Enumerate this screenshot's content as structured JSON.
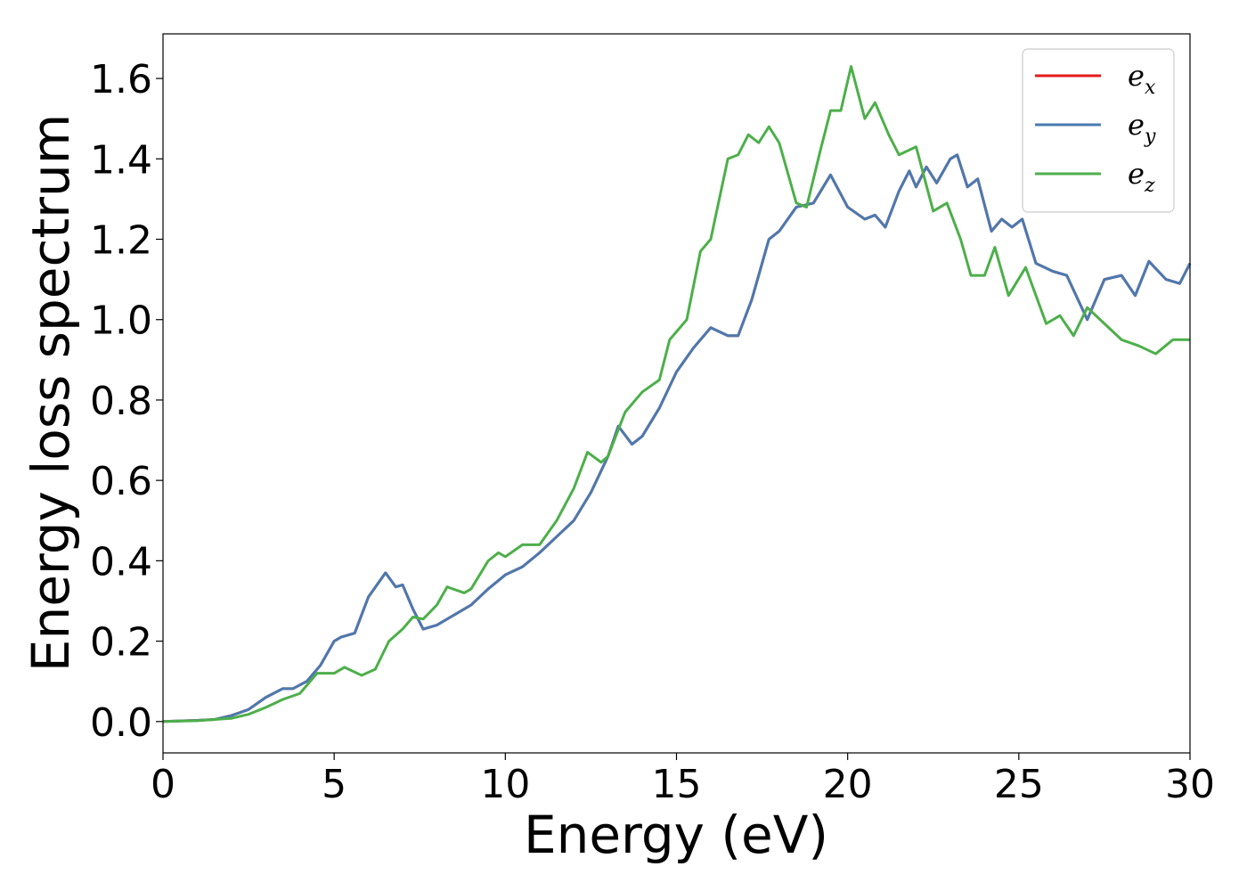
{
  "chart_data": {
    "type": "line",
    "xlabel": "Energy (eV)",
    "ylabel": "Energy loss spectrum",
    "xlim": [
      0,
      30
    ],
    "ylim": [
      -0.078,
      1.711
    ],
    "xticks": [
      0,
      5,
      10,
      15,
      20,
      25,
      30
    ],
    "yticks": [
      {
        "value": 0,
        "label": "0.0"
      },
      0.2,
      0.4,
      0.6,
      0.8,
      {
        "value": 1,
        "label": "1.0"
      },
      1.2,
      1.4,
      1.6
    ],
    "grid": false,
    "legend": "upper right",
    "series": [
      {
        "name": "e_x",
        "color": "#e41a1c",
        "x": [
          0,
          1,
          1.5,
          2,
          2.5,
          3,
          3.5,
          3.8,
          4.2,
          4.6,
          5,
          5.2,
          5.6,
          6,
          6.5,
          6.8,
          7,
          7.3,
          7.6,
          8,
          8.5,
          9,
          9.5,
          10,
          10.5,
          11,
          11.5,
          12,
          12.5,
          13,
          13.3,
          13.7,
          14,
          14.5,
          15,
          15.5,
          16,
          16.5,
          16.8,
          17.2,
          17.7,
          18,
          18.5,
          19,
          19.5,
          20,
          20.5,
          20.8,
          21.1,
          21.5,
          21.8,
          22,
          22.3,
          22.6,
          23,
          23.2,
          23.5,
          23.8,
          24.2,
          24.5,
          24.8,
          25.1,
          25.5,
          26,
          26.4,
          27,
          27.5,
          28,
          28.4,
          28.8,
          29.3,
          29.7,
          30
        ],
        "values": [
          0,
          0.003,
          0.005,
          0.015,
          0.03,
          0.06,
          0.082,
          0.082,
          0.1,
          0.14,
          0.2,
          0.21,
          0.22,
          0.31,
          0.37,
          0.335,
          0.34,
          0.28,
          0.23,
          0.24,
          0.265,
          0.29,
          0.33,
          0.365,
          0.385,
          0.42,
          0.46,
          0.5,
          0.57,
          0.66,
          0.735,
          0.69,
          0.71,
          0.78,
          0.87,
          0.93,
          0.98,
          0.96,
          0.96,
          1.05,
          1.2,
          1.22,
          1.28,
          1.29,
          1.36,
          1.28,
          1.25,
          1.26,
          1.23,
          1.32,
          1.37,
          1.33,
          1.38,
          1.34,
          1.4,
          1.41,
          1.33,
          1.35,
          1.22,
          1.25,
          1.23,
          1.25,
          1.14,
          1.12,
          1.11,
          1.0,
          1.1,
          1.11,
          1.06,
          1.145,
          1.1,
          1.09,
          1.14
        ]
      },
      {
        "name": "e_y",
        "color": "#4a7ab0",
        "x": [
          0,
          1,
          1.5,
          2,
          2.5,
          3,
          3.5,
          3.8,
          4.2,
          4.6,
          5,
          5.2,
          5.6,
          6,
          6.5,
          6.8,
          7,
          7.3,
          7.6,
          8,
          8.5,
          9,
          9.5,
          10,
          10.5,
          11,
          11.5,
          12,
          12.5,
          13,
          13.3,
          13.7,
          14,
          14.5,
          15,
          15.5,
          16,
          16.5,
          16.8,
          17.2,
          17.7,
          18,
          18.5,
          19,
          19.5,
          20,
          20.5,
          20.8,
          21.1,
          21.5,
          21.8,
          22,
          22.3,
          22.6,
          23,
          23.2,
          23.5,
          23.8,
          24.2,
          24.5,
          24.8,
          25.1,
          25.5,
          26,
          26.4,
          27,
          27.5,
          28,
          28.4,
          28.8,
          29.3,
          29.7,
          30
        ],
        "values": [
          0,
          0.003,
          0.005,
          0.015,
          0.03,
          0.06,
          0.082,
          0.082,
          0.1,
          0.14,
          0.2,
          0.21,
          0.22,
          0.31,
          0.37,
          0.335,
          0.34,
          0.28,
          0.23,
          0.24,
          0.265,
          0.29,
          0.33,
          0.365,
          0.385,
          0.42,
          0.46,
          0.5,
          0.57,
          0.66,
          0.735,
          0.69,
          0.71,
          0.78,
          0.87,
          0.93,
          0.98,
          0.96,
          0.96,
          1.05,
          1.2,
          1.22,
          1.28,
          1.29,
          1.36,
          1.28,
          1.25,
          1.26,
          1.23,
          1.32,
          1.37,
          1.33,
          1.38,
          1.34,
          1.4,
          1.41,
          1.33,
          1.35,
          1.22,
          1.25,
          1.23,
          1.25,
          1.14,
          1.12,
          1.11,
          1.0,
          1.1,
          1.11,
          1.06,
          1.145,
          1.1,
          1.09,
          1.14
        ]
      },
      {
        "name": "e_z",
        "color": "#4daf4a",
        "x": [
          0,
          1,
          2,
          2.5,
          3,
          3.5,
          4,
          4.5,
          5,
          5.3,
          5.8,
          6.2,
          6.6,
          7,
          7.3,
          7.6,
          8,
          8.3,
          8.8,
          9,
          9.5,
          9.8,
          10,
          10.5,
          11,
          11.5,
          12,
          12.4,
          12.8,
          13,
          13.5,
          14,
          14.5,
          14.8,
          15.3,
          15.7,
          16,
          16.5,
          16.8,
          17.1,
          17.4,
          17.7,
          18,
          18.5,
          18.8,
          19.2,
          19.5,
          19.8,
          20.1,
          20.5,
          20.8,
          21.2,
          21.5,
          22,
          22.5,
          22.9,
          23.3,
          23.6,
          24,
          24.3,
          24.7,
          25.2,
          25.8,
          26.2,
          26.6,
          27,
          27.5,
          28,
          28.5,
          29,
          29.5,
          30
        ],
        "values": [
          0,
          0.002,
          0.008,
          0.018,
          0.035,
          0.055,
          0.07,
          0.12,
          0.12,
          0.135,
          0.115,
          0.13,
          0.2,
          0.23,
          0.26,
          0.255,
          0.29,
          0.335,
          0.32,
          0.33,
          0.4,
          0.42,
          0.41,
          0.44,
          0.44,
          0.5,
          0.58,
          0.67,
          0.645,
          0.66,
          0.77,
          0.82,
          0.85,
          0.95,
          1.0,
          1.17,
          1.2,
          1.4,
          1.41,
          1.46,
          1.44,
          1.48,
          1.44,
          1.29,
          1.28,
          1.42,
          1.52,
          1.52,
          1.63,
          1.5,
          1.54,
          1.46,
          1.41,
          1.43,
          1.27,
          1.29,
          1.2,
          1.11,
          1.11,
          1.18,
          1.06,
          1.13,
          0.99,
          1.01,
          0.96,
          1.03,
          0.99,
          0.95,
          0.935,
          0.915,
          0.95,
          0.95
        ]
      }
    ]
  }
}
